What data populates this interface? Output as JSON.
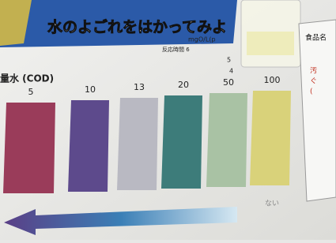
{
  "header": {
    "title": "水のよごれをはかってみよ",
    "unit": "mgO/L(p",
    "reaction_time": "反応時間 6"
  },
  "scale": {
    "label": "量水 (COD)",
    "swatches": [
      {
        "label": "5",
        "color": "#9a3c5a"
      },
      {
        "label": "10",
        "color": "#5d4a8c"
      },
      {
        "label": "13",
        "color": "#b9b9c2"
      },
      {
        "label": "20",
        "color": "#3d7c7a"
      },
      {
        "label": "50",
        "color": "#a9c2a4"
      },
      {
        "label": "100",
        "color": "#d9d27a"
      }
    ]
  },
  "side_card": {
    "heading": "食品名",
    "lines": [
      "汚",
      "ぐ",
      "("
    ]
  },
  "notes": [
    "5",
    "4",
    "ない"
  ]
}
